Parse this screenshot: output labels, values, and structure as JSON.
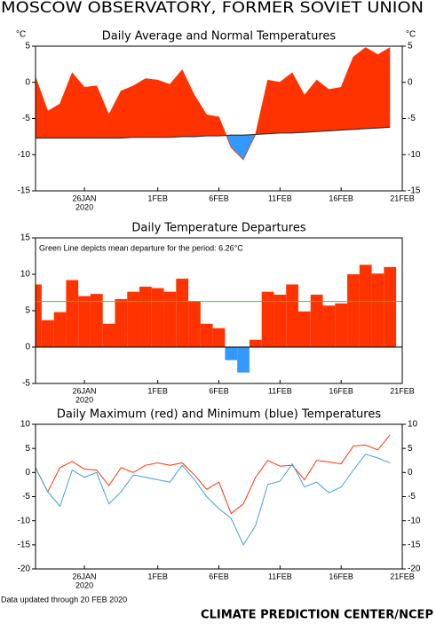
{
  "title": "MOSCOW OBSERVATORY, FORMER SOVIET UNION",
  "footer_note": "Data updated through 20 FEB 2020",
  "credit": "CLIMATE PREDICTION CENTER/NCEP",
  "chart_data": [
    {
      "type": "area",
      "title": "Daily Average and Normal Temperatures",
      "y_unit": "°C",
      "year_label": "2020",
      "x": [
        22,
        23,
        24,
        25,
        26,
        27,
        28,
        29,
        30,
        31,
        32,
        33,
        34,
        35,
        36,
        37,
        38,
        39,
        40,
        41,
        42,
        43,
        44,
        45,
        46,
        47,
        48,
        49,
        50,
        51
      ],
      "series": [
        {
          "color": "#ff3300",
          "values": [
            0.7,
            -4,
            -3,
            1.3,
            -0.7,
            -0.5,
            -4.5,
            -1.2,
            -0.5,
            0.5,
            0.3,
            -0.3,
            1.7,
            -1.8,
            -4.5,
            -4.8,
            -9,
            -10.7,
            -7.2,
            0.3,
            0,
            1.3,
            -1.8,
            0.3,
            -1,
            -0.7,
            3.5,
            4.8,
            3.8,
            4.8
          ]
        },
        {
          "color": "#333333",
          "values": [
            -7.7,
            -7.7,
            -7.7,
            -7.7,
            -7.7,
            -7.7,
            -7.7,
            -7.7,
            -7.6,
            -7.6,
            -7.6,
            -7.6,
            -7.5,
            -7.5,
            -7.4,
            -7.4,
            -7.3,
            -7.3,
            -7.2,
            -7.1,
            -7.0,
            -7.0,
            -6.9,
            -6.8,
            -6.7,
            -6.6,
            -6.5,
            -6.4,
            -6.3,
            -6.2
          ]
        }
      ],
      "above_color": "#ff3300",
      "below_color": "#3399ff",
      "xlim": [
        22,
        52
      ],
      "xticks": [
        {
          "value": 26,
          "label": "26JAN"
        },
        {
          "value": 32,
          "label": "1FEB"
        },
        {
          "value": 37,
          "label": "6FEB"
        },
        {
          "value": 42,
          "label": "11FEB"
        },
        {
          "value": 47,
          "label": "16FEB"
        },
        {
          "value": 52,
          "label": "21FEB"
        }
      ],
      "ylim": [
        -15,
        5
      ],
      "yticks": [
        5,
        0,
        -5,
        -10,
        -15
      ],
      "right_axis": true
    },
    {
      "type": "bar",
      "title": "Daily Temperature Departures",
      "year_label": "2020",
      "annotation": "Green Line depicts mean departure for the period: 6.26°C",
      "mean_departure": 6.26,
      "mean_color": "#33cc33",
      "x": [
        22,
        23,
        24,
        25,
        26,
        27,
        28,
        29,
        30,
        31,
        32,
        33,
        34,
        35,
        36,
        37,
        38,
        39,
        40,
        41,
        42,
        43,
        44,
        45,
        46,
        47,
        48,
        49,
        50,
        51
      ],
      "values": [
        8.6,
        3.7,
        4.8,
        9.2,
        7.0,
        7.3,
        3.2,
        6.6,
        7.6,
        8.3,
        8.1,
        7.6,
        9.4,
        6.3,
        3.2,
        2.6,
        -1.8,
        -3.5,
        1.0,
        7.6,
        7.2,
        8.6,
        4.9,
        7.2,
        5.7,
        6.0,
        10.0,
        11.3,
        10.1,
        11.0
      ],
      "color": "#ff3300",
      "negative_color": "#3399ff",
      "xlim": [
        22,
        52
      ],
      "xticks": [
        {
          "value": 26,
          "label": "26JAN"
        },
        {
          "value": 32,
          "label": "1FEB"
        },
        {
          "value": 37,
          "label": "6FEB"
        },
        {
          "value": 42,
          "label": "11FEB"
        },
        {
          "value": 47,
          "label": "16FEB"
        },
        {
          "value": 52,
          "label": "21FEB"
        }
      ],
      "ylim": [
        -5,
        15
      ],
      "yticks": [
        15,
        10,
        5,
        0,
        -5
      ],
      "right_axis": false
    },
    {
      "type": "line",
      "title": "Daily Maximum (red) and Minimum (blue) Temperatures",
      "year_label": "2020",
      "x": [
        22,
        23,
        24,
        25,
        26,
        27,
        28,
        29,
        30,
        31,
        32,
        33,
        34,
        35,
        36,
        37,
        38,
        39,
        40,
        41,
        42,
        43,
        44,
        45,
        46,
        47,
        48,
        49,
        50,
        51
      ],
      "series": [
        {
          "color": "#ff3300",
          "values": [
            1,
            -4,
            1,
            2.3,
            0.7,
            0.5,
            -2.7,
            1,
            0,
            1.5,
            2,
            1.5,
            2,
            -0.5,
            -3.5,
            -2,
            -8.5,
            -6.5,
            -1,
            2.5,
            1.3,
            1.5,
            -1.5,
            2.5,
            2.2,
            1.8,
            5.5,
            5.7,
            4.7,
            7.8
          ]
        },
        {
          "color": "#3f9fdf",
          "values": [
            1,
            -4,
            -7,
            0.5,
            -1,
            0,
            -6.5,
            -4,
            -0.5,
            -1,
            -1.5,
            -2,
            1.5,
            -1.5,
            -5,
            -7.5,
            -9.5,
            -15,
            -11,
            -2.5,
            -1.8,
            1.8,
            -3,
            -2,
            -4.2,
            -3,
            0.5,
            3.8,
            3,
            2
          ]
        }
      ],
      "xlim": [
        22,
        52
      ],
      "xticks": [
        {
          "value": 26,
          "label": "26JAN"
        },
        {
          "value": 32,
          "label": "1FEB"
        },
        {
          "value": 37,
          "label": "6FEB"
        },
        {
          "value": 42,
          "label": "11FEB"
        },
        {
          "value": 47,
          "label": "16FEB"
        },
        {
          "value": 52,
          "label": "21FEB"
        }
      ],
      "ylim": [
        -20,
        10
      ],
      "yticks": [
        10,
        5,
        0,
        -5,
        -10,
        -15,
        -20
      ],
      "right_axis": true
    }
  ]
}
